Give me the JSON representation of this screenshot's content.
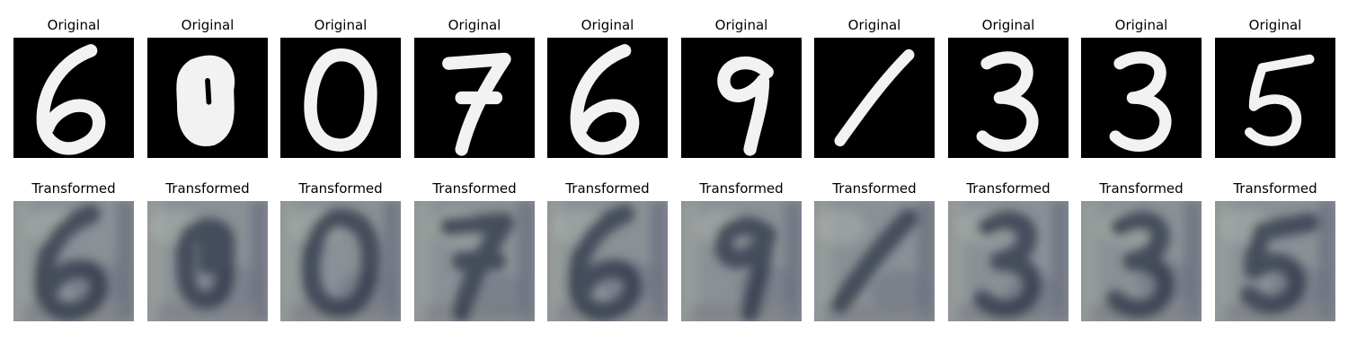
{
  "figure": {
    "original_title": "Original",
    "transformed_title": "Transformed",
    "digits": [
      "6",
      "8",
      "0",
      "7",
      "6",
      "9",
      "1",
      "3",
      "3",
      "5"
    ],
    "colors": {
      "original_background": "#000000",
      "original_stroke": "#f2f2f2",
      "transformed_base": "#8b9096",
      "transformed_dark": "#2b3446",
      "transformed_light": "#aeb3ad"
    }
  }
}
